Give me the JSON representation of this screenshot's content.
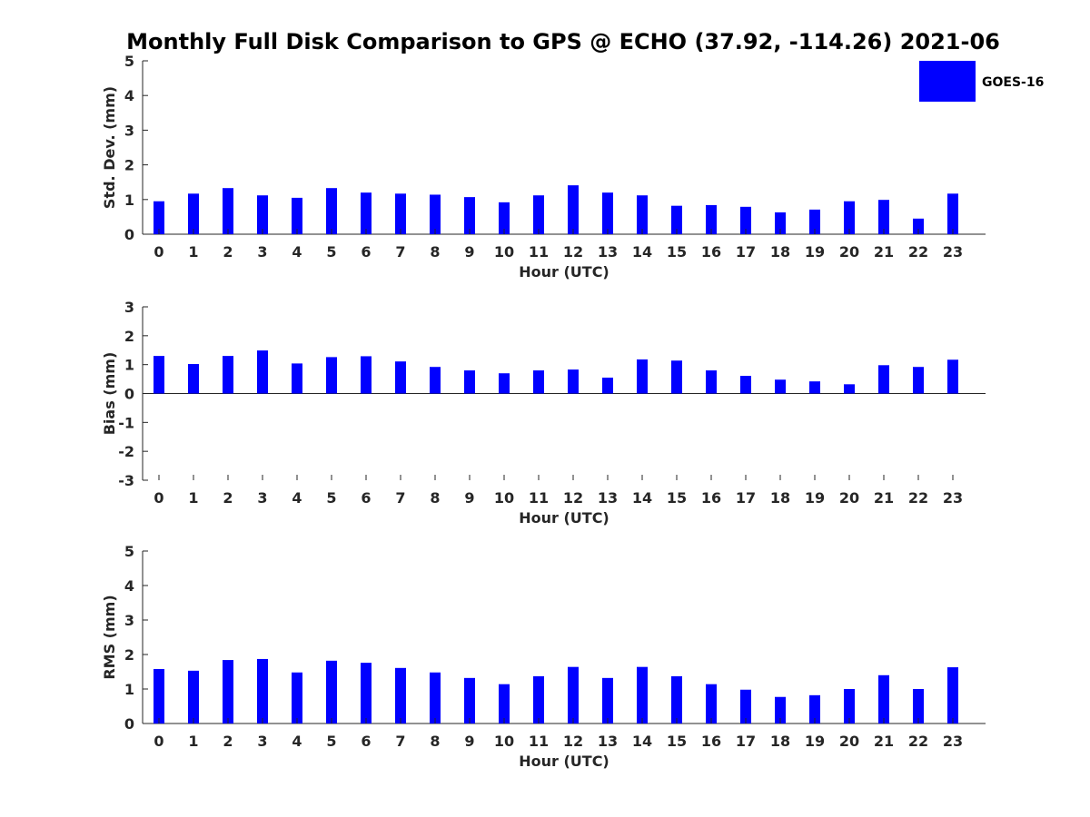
{
  "title": "Monthly Full Disk Comparison to GPS @ ECHO (37.92, -114.26) 2021-06",
  "legend": {
    "label": "GOES-16",
    "color": "#0000ff",
    "position": "top-right"
  },
  "chart_data": [
    {
      "type": "bar",
      "xlabel": "Hour (UTC)",
      "ylabel": "Std. Dev. (mm)",
      "ylim": [
        0,
        5
      ],
      "yticks": [
        0,
        1,
        2,
        3,
        4,
        5
      ],
      "categories": [
        "0",
        "1",
        "2",
        "3",
        "4",
        "5",
        "6",
        "7",
        "8",
        "9",
        "10",
        "11",
        "12",
        "13",
        "14",
        "15",
        "16",
        "17",
        "18",
        "19",
        "20",
        "21",
        "22",
        "23"
      ],
      "series": [
        {
          "name": "GOES-16",
          "color": "#0000ff",
          "values": [
            0.95,
            1.17,
            1.33,
            1.12,
            1.05,
            1.33,
            1.2,
            1.17,
            1.14,
            1.07,
            0.92,
            1.12,
            1.41,
            1.2,
            1.12,
            0.82,
            0.84,
            0.79,
            0.63,
            0.71,
            0.95,
            0.99,
            0.45,
            1.17
          ]
        }
      ]
    },
    {
      "type": "bar",
      "xlabel": "Hour (UTC)",
      "ylabel": "Bias (mm)",
      "ylim": [
        -3,
        3
      ],
      "yticks": [
        -3,
        -2,
        -1,
        0,
        1,
        2,
        3
      ],
      "categories": [
        "0",
        "1",
        "2",
        "3",
        "4",
        "5",
        "6",
        "7",
        "8",
        "9",
        "10",
        "11",
        "12",
        "13",
        "14",
        "15",
        "16",
        "17",
        "18",
        "19",
        "20",
        "21",
        "22",
        "23"
      ],
      "series": [
        {
          "name": "GOES-16",
          "color": "#0000ff",
          "values": [
            1.3,
            1.02,
            1.3,
            1.49,
            1.04,
            1.26,
            1.29,
            1.11,
            0.92,
            0.8,
            0.7,
            0.8,
            0.83,
            0.55,
            1.18,
            1.14,
            0.8,
            0.61,
            0.48,
            0.42,
            0.32,
            0.98,
            0.92,
            1.17
          ]
        }
      ]
    },
    {
      "type": "bar",
      "xlabel": "Hour (UTC)",
      "ylabel": "RMS (mm)",
      "ylim": [
        0,
        5
      ],
      "yticks": [
        0,
        1,
        2,
        3,
        4,
        5
      ],
      "categories": [
        "0",
        "1",
        "2",
        "3",
        "4",
        "5",
        "6",
        "7",
        "8",
        "9",
        "10",
        "11",
        "12",
        "13",
        "14",
        "15",
        "16",
        "17",
        "18",
        "19",
        "20",
        "21",
        "22",
        "23"
      ],
      "series": [
        {
          "name": "GOES-16",
          "color": "#0000ff",
          "values": [
            1.58,
            1.53,
            1.84,
            1.87,
            1.48,
            1.82,
            1.76,
            1.61,
            1.48,
            1.32,
            1.14,
            1.37,
            1.64,
            1.32,
            1.64,
            1.37,
            1.14,
            0.98,
            0.77,
            0.82,
            1.0,
            1.4,
            1.0,
            1.63
          ]
        }
      ]
    }
  ]
}
